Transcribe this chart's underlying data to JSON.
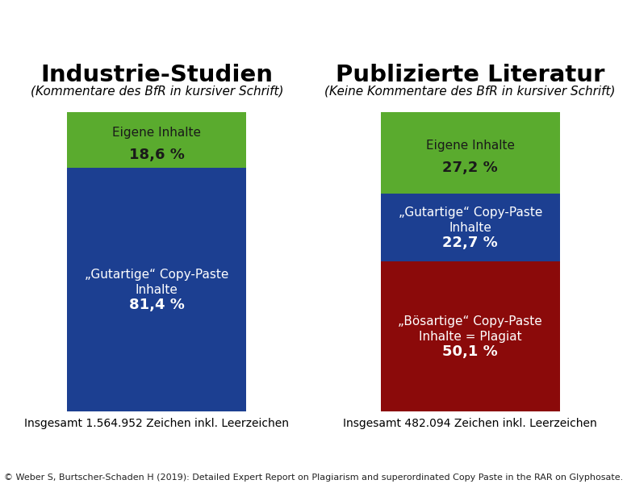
{
  "title_left": "Industrie-Studien",
  "title_right": "Publizierte Literatur",
  "subtitle_left": "(Kommentare des BfR in kursiver Schrift)",
  "subtitle_right": "(Keine Kommentare des BfR in kursiver Schrift)",
  "footer_left": "Insgesamt 1.564.952 Zeichen inkl. Leerzeichen",
  "footer_right": "Insgesamt 482.094 Zeichen inkl. Leerzeichen",
  "copyright": "© Weber S, Burtscher-Schaden H (2019): Detailed Expert Report on Plagiarism and superordinated Copy Paste in the RAR on Glyphosate.",
  "bar_left": [
    {
      "label": "Eigene Inhalte",
      "value": 18.6,
      "color": "#5aab2e",
      "text_color": "#1a1a1a"
    },
    {
      "label": "„Gutartige“ Copy-Paste\nInhalte",
      "value": 81.4,
      "color": "#1c3f91",
      "text_color": "#ffffff"
    }
  ],
  "bar_right": [
    {
      "label": "Eigene Inhalte",
      "value": 27.2,
      "color": "#5aab2e",
      "text_color": "#1a1a1a"
    },
    {
      "label": "„Gutartige“ Copy-Paste\nInhalte",
      "value": 22.7,
      "color": "#1c3f91",
      "text_color": "#ffffff"
    },
    {
      "label": "„Bösartige“ Copy-Paste\nInhalte = Plagiat",
      "value": 50.1,
      "color": "#8b0a0a",
      "text_color": "#ffffff"
    }
  ],
  "bg_color": "#ffffff",
  "title_fontsize": 21,
  "subtitle_fontsize": 11,
  "label_fontsize": 11,
  "value_fontsize": 13,
  "footer_fontsize": 10,
  "copyright_fontsize": 8,
  "bar_width": 0.62
}
